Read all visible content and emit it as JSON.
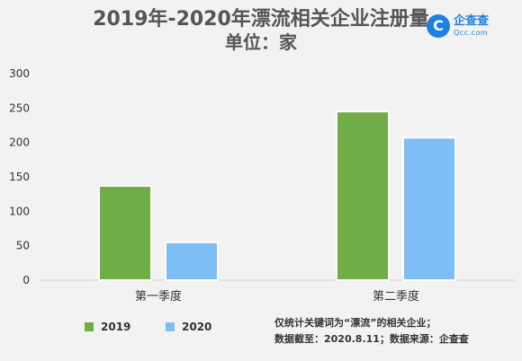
{
  "header": {
    "title": "2019年-2020年漂流相关企业注册量",
    "subtitle": "单位：家"
  },
  "logo": {
    "icon": "qcc-c-icon",
    "glyph": "C",
    "name": "企查查",
    "url": "Qcc.com"
  },
  "notes": {
    "line1": "仅统计关键词为“漂流”的相关企业；",
    "line2": "数据截至：2020.8.11；数据来源：企查查"
  },
  "chart_data": {
    "type": "bar",
    "title": "2019年-2020年漂流相关企业注册量",
    "subtitle": "单位：家",
    "categories": [
      "第一季度",
      "第二季度"
    ],
    "series": [
      {
        "name": "2019",
        "values": [
          137,
          245
        ],
        "color": "#70ad47"
      },
      {
        "name": "2020",
        "values": [
          55,
          207
        ],
        "color": "#7fbef5"
      }
    ],
    "yticks": [
      0,
      50,
      100,
      150,
      200,
      250,
      300
    ],
    "ylim": [
      0,
      300
    ],
    "xlabel": "",
    "ylabel": "",
    "grid": false,
    "legend": "bottom-left"
  }
}
